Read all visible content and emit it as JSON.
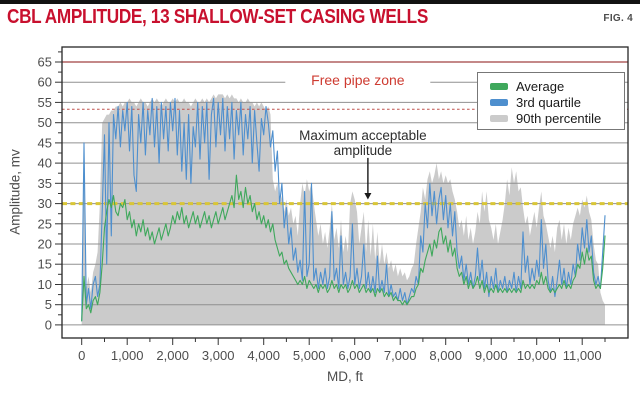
{
  "figure": {
    "title": "CBL AMPLITUDE, 13 SHALLOW-SET CASING WELLS",
    "fig_label": "FIG. 4",
    "title_color": "#C8102E"
  },
  "legend": {
    "items": [
      {
        "label": "Average",
        "color": "#3FA85C"
      },
      {
        "label": "3rd quartile",
        "color": "#4E8FCE"
      },
      {
        "label": "90th percentile",
        "color": "#CBCBCB"
      }
    ]
  },
  "annotations": {
    "free_pipe_zone": {
      "text": "Free pipe zone",
      "md": 6070,
      "mv": 60.5,
      "color": "#CE3B31"
    },
    "max_acceptable": {
      "line1": "Maximum acceptable",
      "line2": "amplitude",
      "md": 6180,
      "mv": 45,
      "arrow_md": 6290,
      "arrow_from_mv": 41.3,
      "arrow_to_mv": 31
    }
  },
  "chart_data": {
    "type": "line",
    "title": "CBL Amplitude, 13 shallow-set casing wells",
    "xlabel": "MD, ft",
    "ylabel": "Amplitude, mv",
    "xlim": [
      -350,
      12000
    ],
    "ylim": [
      -3.2,
      68.7
    ],
    "grid": "horizontal gray lines every 5 mv",
    "legend_position": "top-right",
    "x_tick_values": [
      0,
      1000,
      2000,
      3000,
      4000,
      5000,
      6000,
      7000,
      8000,
      9000,
      10000,
      11000
    ],
    "x_tick_labels": [
      "0",
      "1,000",
      "2,000",
      "3,000",
      "4,000",
      "5,000",
      "6,000",
      "7,000",
      "8,000",
      "9,000",
      "10,000",
      "11,000"
    ],
    "x_minor_tick_step": 500,
    "y_tick_values": [
      0,
      5,
      10,
      15,
      20,
      25,
      30,
      35,
      40,
      45,
      50,
      55,
      60,
      65
    ],
    "y_tick_labels": [
      "0",
      "5",
      "10",
      "15",
      "20",
      "25",
      "30",
      "35",
      "40",
      "45",
      "50",
      "55",
      "60",
      "65"
    ],
    "y_minor_tick_step": 2.5,
    "reference_lines": [
      {
        "name": "free-pipe-upper",
        "y": 65,
        "color": "#A04040",
        "style": "solid"
      },
      {
        "name": "free-pipe-lower",
        "y": 53.3,
        "color": "#C0504D",
        "style": "dashed"
      },
      {
        "name": "max-acceptable-amplitude",
        "y": 30,
        "color": "#D9C636",
        "style": "thick-dashed"
      }
    ],
    "md_start": 0,
    "md_step": 50,
    "series": [
      {
        "name": "90th percentile",
        "style": "area",
        "color": "#CBCBCB",
        "values": [
          2,
          46,
          9,
          12,
          8,
          13,
          15,
          18,
          30,
          50,
          51,
          52,
          52,
          53,
          53,
          54,
          54,
          55,
          54,
          55,
          55,
          56,
          55,
          55,
          54,
          55,
          56,
          55,
          55,
          54,
          55,
          56,
          55,
          56,
          55,
          54,
          55,
          56,
          55,
          55,
          56,
          55,
          56,
          55,
          55,
          56,
          55,
          55,
          54,
          55,
          56,
          55,
          55,
          56,
          55,
          56,
          55,
          56,
          57,
          56,
          57,
          57,
          57,
          56,
          57,
          56,
          57,
          56,
          56,
          55,
          56,
          55,
          55,
          56,
          55,
          55,
          54,
          55,
          54,
          55,
          54,
          53,
          54,
          52,
          36,
          33,
          35,
          30,
          32,
          28,
          31,
          27,
          29,
          25,
          27,
          22,
          30,
          35,
          32,
          36,
          33,
          35,
          30,
          26,
          22,
          25,
          20,
          23,
          19,
          24,
          30,
          21,
          24,
          19,
          26,
          18,
          22,
          18,
          30,
          33,
          31,
          28,
          20,
          24,
          28,
          18,
          26,
          17,
          25,
          16,
          23,
          15,
          20,
          15,
          18,
          14,
          16,
          13,
          15,
          12,
          14,
          12,
          13,
          11,
          12,
          14,
          15,
          20,
          24,
          28,
          34,
          31,
          36,
          38,
          35,
          37,
          40,
          36,
          38,
          35,
          37,
          35,
          36,
          33,
          31,
          28,
          24,
          26,
          22,
          27,
          21,
          24,
          20,
          23,
          28,
          25,
          33,
          28,
          33,
          26,
          24,
          21,
          25,
          20,
          23,
          26,
          30,
          36,
          32,
          39,
          35,
          38,
          33,
          34,
          29,
          25,
          27,
          22,
          25,
          28,
          24,
          29,
          33,
          27,
          25,
          22,
          19,
          22,
          18,
          24,
          26,
          21,
          25,
          20,
          24,
          21,
          25,
          27,
          29,
          27,
          31,
          29,
          32,
          28,
          26,
          20,
          16,
          15,
          8,
          6,
          5
        ]
      },
      {
        "name": "3rd quartile",
        "style": "line",
        "color": "#4E8FCE",
        "values": [
          1,
          45,
          5,
          9,
          4,
          10,
          12,
          7,
          10,
          28,
          47,
          15,
          50,
          22,
          52,
          46,
          54,
          44,
          53,
          48,
          55,
          43,
          54,
          37,
          33,
          52,
          45,
          55,
          42,
          53,
          47,
          56,
          44,
          54,
          40,
          55,
          46,
          54,
          43,
          55,
          48,
          56,
          42,
          53,
          38,
          50,
          36,
          52,
          35,
          49,
          44,
          55,
          41,
          54,
          45,
          55,
          36,
          52,
          56,
          44,
          55,
          47,
          56,
          43,
          54,
          46,
          55,
          41,
          53,
          47,
          55,
          42,
          52,
          46,
          54,
          40,
          53,
          45,
          38,
          51,
          47,
          54,
          50,
          44,
          48,
          38,
          43,
          30,
          35,
          24,
          29,
          20,
          24,
          16,
          19,
          13,
          16,
          11,
          33,
          12,
          15,
          35,
          11,
          14,
          9,
          13,
          10,
          14,
          9,
          12,
          28,
          11,
          14,
          9,
          22,
          10,
          13,
          9,
          12,
          25,
          10,
          14,
          9,
          12,
          20,
          9,
          13,
          8,
          12,
          8,
          17,
          8,
          11,
          8,
          15,
          7,
          10,
          7,
          8,
          6,
          9,
          6,
          8,
          5,
          7,
          9,
          8,
          12,
          10,
          22,
          18,
          30,
          24,
          35,
          27,
          33,
          25,
          31,
          34,
          26,
          32,
          24,
          30,
          22,
          28,
          18,
          14,
          17,
          11,
          15,
          10,
          13,
          9,
          12,
          19,
          11,
          16,
          9,
          13,
          7,
          12,
          9,
          14,
          8,
          11,
          9,
          12,
          8,
          11,
          9,
          13,
          8,
          12,
          9,
          23,
          13,
          17,
          10,
          14,
          11,
          16,
          12,
          26,
          14,
          20,
          11,
          8,
          12,
          7,
          11,
          16,
          10,
          14,
          9,
          13,
          10,
          15,
          12,
          20,
          16,
          24,
          19,
          26,
          18,
          22,
          13,
          10,
          12,
          9,
          18,
          27
        ]
      },
      {
        "name": "Average",
        "style": "line",
        "color": "#3FA85C",
        "values": [
          1,
          12,
          4,
          5,
          3,
          6,
          7,
          5,
          8,
          15,
          24,
          28,
          31,
          29,
          32,
          28,
          27,
          30,
          29,
          31,
          26,
          28,
          24,
          26,
          22,
          25,
          23,
          26,
          22,
          24,
          21,
          23,
          20,
          22,
          24,
          21,
          23,
          25,
          22,
          24,
          27,
          25,
          28,
          26,
          29,
          25,
          27,
          24,
          26,
          28,
          25,
          27,
          24,
          26,
          28,
          25,
          27,
          24,
          26,
          28,
          25,
          27,
          29,
          26,
          28,
          30,
          32,
          29,
          37,
          31,
          33,
          29,
          34,
          30,
          32,
          28,
          30,
          26,
          28,
          25,
          27,
          24,
          26,
          23,
          25,
          21,
          19,
          17,
          18,
          15,
          16,
          14,
          13,
          12,
          11,
          10,
          11,
          10,
          12,
          9,
          11,
          10,
          9,
          10,
          8,
          10,
          9,
          10,
          8,
          9,
          11,
          9,
          10,
          8,
          10,
          9,
          10,
          8,
          9,
          11,
          9,
          10,
          8,
          9,
          10,
          8,
          9,
          8,
          9,
          7,
          9,
          8,
          9,
          7,
          8,
          7,
          8,
          6,
          7,
          6,
          6,
          5,
          6,
          5,
          6,
          7,
          7,
          9,
          10,
          14,
          13,
          16,
          18,
          20,
          17,
          21,
          19,
          23,
          24,
          20,
          22,
          18,
          21,
          17,
          19,
          14,
          12,
          13,
          10,
          12,
          9,
          11,
          9,
          10,
          12,
          9,
          11,
          8,
          10,
          8,
          9,
          8,
          10,
          8,
          9,
          8,
          9,
          8,
          9,
          8,
          9,
          8,
          9,
          8,
          11,
          9,
          10,
          9,
          10,
          9,
          11,
          10,
          13,
          10,
          12,
          9,
          8,
          9,
          8,
          9,
          10,
          9,
          11,
          9,
          10,
          9,
          11,
          12,
          15,
          14,
          18,
          15,
          19,
          16,
          17,
          11,
          9,
          10,
          9,
          14,
          22
        ]
      }
    ]
  }
}
